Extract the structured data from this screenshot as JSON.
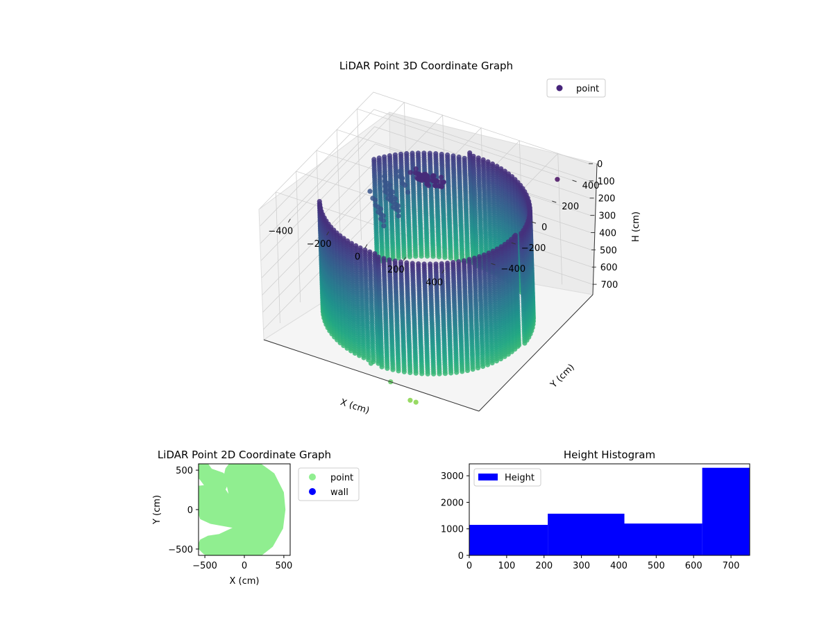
{
  "chart_data": [
    {
      "type": "scatter3d",
      "title": "LiDAR Point 3D Coordinate Graph",
      "xlabel": "X (cm)",
      "ylabel": "Y (cm)",
      "zlabel": "H (cm)",
      "xticks": [
        -400,
        -200,
        0,
        200,
        400
      ],
      "yticks": [
        -400,
        -200,
        0,
        200,
        400
      ],
      "zticks": [
        0,
        100,
        200,
        300,
        400,
        500,
        600,
        700
      ],
      "xlim": [
        -560,
        560
      ],
      "ylim": [
        -560,
        560
      ],
      "zlim": [
        0,
        760
      ],
      "z_inverted": true,
      "colormap": "viridis",
      "legend": {
        "placement": "top-right",
        "entries": [
          {
            "label": "point",
            "color": "#46247a"
          }
        ]
      },
      "shape": {
        "kind": "cylindrical-wall",
        "radius": 480,
        "height": 750,
        "gap_angle_deg": [
          150,
          205
        ]
      },
      "outliers": [
        {
          "x": 0,
          "y": -560,
          "z": 690
        },
        {
          "x": 100,
          "y": -560,
          "z": 760
        },
        {
          "x": 200,
          "y": -560,
          "z": 830
        },
        {
          "x": 230,
          "y": -560,
          "z": 830
        },
        {
          "x": 470,
          "y": 420,
          "z": 40
        }
      ],
      "grid": true
    },
    {
      "type": "scatter",
      "title": "LiDAR Point 2D Coordinate Graph",
      "xlabel": "X (cm)",
      "ylabel": "Y (cm)",
      "xticks": [
        -500,
        0,
        500
      ],
      "yticks": [
        -500,
        0,
        500
      ],
      "xlim": [
        -580,
        580
      ],
      "ylim": [
        -580,
        580
      ],
      "legend": {
        "placement": "outside-right",
        "entries": [
          {
            "label": "point",
            "color": "#90ee90"
          },
          {
            "label": "wall",
            "color": "#0000ff"
          }
        ]
      }
    },
    {
      "type": "bar",
      "title": "Height Histogram",
      "xticks": [
        0,
        100,
        200,
        300,
        400,
        500,
        600,
        700
      ],
      "yticks": [
        0,
        1000,
        2000,
        3000
      ],
      "xlim": [
        0,
        750
      ],
      "ylim": [
        0,
        3450
      ],
      "bins": [
        {
          "start": 0,
          "end": 210,
          "value": 1150
        },
        {
          "start": 210,
          "end": 415,
          "value": 1570
        },
        {
          "start": 415,
          "end": 623,
          "value": 1200
        },
        {
          "start": 623,
          "end": 750,
          "value": 3300
        }
      ],
      "color": "#0000ff",
      "legend": {
        "placement": "top-left",
        "entries": [
          {
            "label": "Height",
            "color": "#0000ff"
          }
        ]
      }
    }
  ]
}
